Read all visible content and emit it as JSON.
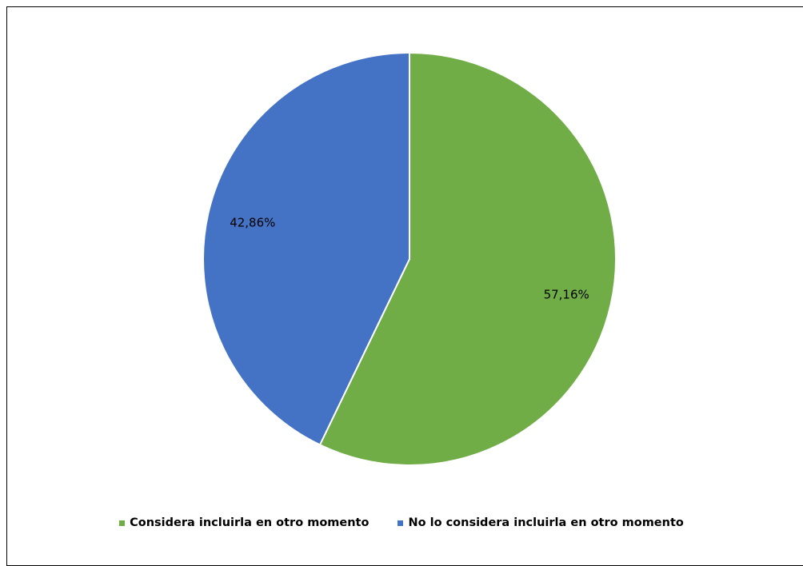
{
  "chart_data": {
    "type": "pie",
    "title": "",
    "slices": [
      {
        "name": "Considera incluirla en otro momento",
        "value": 57.16,
        "label": "57,16%",
        "color": "#70AD47"
      },
      {
        "name": "No lo considera incluirla en otro momento",
        "value": 42.86,
        "label": "42,86%",
        "color": "#4472C4"
      }
    ],
    "start_angle": "12 o'clock, clockwise",
    "legend_position": "bottom"
  }
}
